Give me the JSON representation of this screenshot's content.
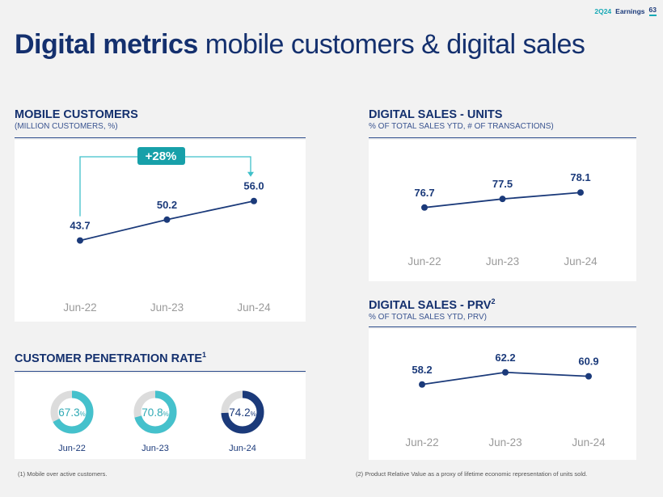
{
  "header": {
    "quarter": "2Q24",
    "label": "Earnings",
    "page": "63"
  },
  "title": {
    "bold": "Digital metrics",
    "rest": "mobile customers & digital sales"
  },
  "sections": {
    "mobile": {
      "title": "MOBILE CUSTOMERS",
      "subtitle": "(MILLION CUSTOMERS, %)"
    },
    "units": {
      "title": "DIGITAL SALES - UNITS",
      "subtitle": "% OF TOTAL SALES YTD, # OF TRANSACTIONS)"
    },
    "prv": {
      "title": "DIGITAL SALES - PRV",
      "sup": "2",
      "subtitle": "% OF TOTAL SALES YTD, PRV)"
    },
    "penetration": {
      "title": "CUSTOMER PENETRATION RATE",
      "sup": "1"
    }
  },
  "chart_data": [
    {
      "type": "line",
      "name": "mobile-customers",
      "categories": [
        "Jun-22",
        "Jun-23",
        "Jun-24"
      ],
      "values": [
        43.7,
        50.2,
        56.0
      ],
      "labels": [
        "43.7",
        "50.2",
        "56.0"
      ],
      "annotation": "+28%",
      "ylim": [
        30,
        65
      ]
    },
    {
      "type": "line",
      "name": "digital-sales-units",
      "categories": [
        "Jun-22",
        "Jun-23",
        "Jun-24"
      ],
      "values": [
        76.7,
        77.5,
        78.1
      ],
      "labels": [
        "76.7",
        "77.5",
        "78.1"
      ],
      "ylim": [
        74.5,
        80
      ]
    },
    {
      "type": "line",
      "name": "digital-sales-prv",
      "categories": [
        "Jun-22",
        "Jun-23",
        "Jun-24"
      ],
      "values": [
        58.2,
        62.2,
        60.9
      ],
      "labels": [
        "58.2",
        "62.2",
        "60.9"
      ],
      "ylim": [
        52,
        68
      ]
    },
    {
      "type": "pie",
      "name": "customer-penetration-rate",
      "items": [
        {
          "label": "Jun-22",
          "value": 67.3,
          "num": "67.3",
          "pct": "%",
          "color": "#45c1cc"
        },
        {
          "label": "Jun-23",
          "value": 70.8,
          "num": "70.8",
          "pct": "%",
          "color": "#45c1cc"
        },
        {
          "label": "Jun-24",
          "value": 74.2,
          "num": "74.2",
          "pct": "%",
          "color": "#1b3a7a"
        }
      ]
    }
  ],
  "footnotes": {
    "left": "(1) Mobile over active customers.",
    "right": "(2) Product Relative Value as a proxy of lifetime economic representation of units sold."
  },
  "colors": {
    "navy": "#1b3a7a",
    "teal": "#17a9b6",
    "gray": "#9a9a9a",
    "ring": "#dcdcdc"
  }
}
